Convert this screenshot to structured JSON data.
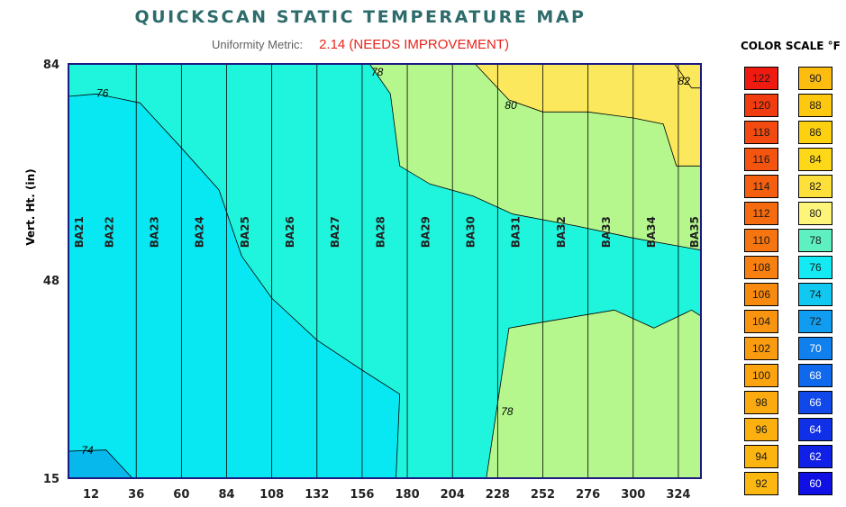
{
  "header": {
    "title": "QUICKSCAN STATIC TEMPERATURE MAP",
    "metric_label": "Uniformity Metric:",
    "metric_value": "2.14 (NEEDS IMPROVEMENT)"
  },
  "colors": {
    "title": "#2e6b6b",
    "metric_value": "#e8231c",
    "plot_border": "#1a1a80",
    "band_74": "#07b8ec",
    "band_76": "#08e8f2",
    "band_78": "#1ff4dc",
    "band_80": "#b5f78c",
    "band_82": "#fbe85c"
  },
  "chart_data": {
    "type": "heatmap",
    "title": "QUICKSCAN STATIC TEMPERATURE MAP",
    "ylabel": "Vert. Ht. (in)",
    "xlabel": "",
    "xlim": [
      0,
      336
    ],
    "ylim": [
      15,
      84
    ],
    "x_ticks": [
      12,
      36,
      60,
      84,
      108,
      132,
      156,
      180,
      204,
      228,
      252,
      276,
      300,
      324
    ],
    "y_ticks": [
      15,
      48,
      84
    ],
    "rack_labels": [
      "BA21",
      "BA22",
      "BA23",
      "BA24",
      "BA25",
      "BA26",
      "BA27",
      "BA28",
      "BA29",
      "BA30",
      "BA31",
      "BA32",
      "BA33",
      "BA34",
      "BA35"
    ],
    "rack_label_x": [
      6,
      22,
      46,
      70,
      94,
      118,
      142,
      166,
      190,
      214,
      238,
      262,
      286,
      310,
      333
    ],
    "rack_line_x": [
      36,
      60,
      84,
      108,
      132,
      156,
      180,
      204,
      228,
      252,
      276,
      300,
      324
    ],
    "contours": [
      {
        "level": 74,
        "label": "74",
        "label_at": [
          10,
          19.5
        ],
        "points": [
          [
            0,
            19.5
          ],
          [
            20,
            19.7
          ],
          [
            34,
            15
          ]
        ]
      },
      {
        "level": 76,
        "label": "76",
        "label_at": [
          18,
          79
        ],
        "points": [
          [
            0,
            78.6
          ],
          [
            15,
            79
          ],
          [
            38,
            77.5
          ],
          [
            60,
            70
          ],
          [
            80,
            63
          ],
          [
            92,
            52
          ],
          [
            108,
            45
          ],
          [
            132,
            38
          ],
          [
            156,
            33
          ],
          [
            176,
            29
          ],
          [
            174,
            15
          ]
        ]
      },
      {
        "level": 78,
        "label": "78",
        "label_at": [
          164,
          82.5
        ],
        "points": [
          [
            160,
            84
          ],
          [
            171,
            79
          ],
          [
            176,
            67
          ],
          [
            192,
            64
          ],
          [
            215,
            62
          ],
          [
            236,
            59
          ],
          [
            270,
            57
          ],
          [
            300,
            55
          ],
          [
            336,
            53
          ]
        ]
      },
      {
        "level": 78,
        "label": "78",
        "label_at": [
          233,
          26
        ],
        "points": [
          [
            222,
            15
          ],
          [
            234,
            40
          ],
          [
            252,
            41
          ],
          [
            290,
            43
          ],
          [
            311,
            40
          ],
          [
            331,
            43
          ],
          [
            336,
            42
          ]
        ]
      },
      {
        "level": 80,
        "label": "80",
        "label_at": [
          235,
          77
        ],
        "points": [
          [
            216,
            84
          ],
          [
            234,
            78
          ],
          [
            252,
            76
          ],
          [
            276,
            76
          ],
          [
            300,
            75
          ],
          [
            316,
            74
          ],
          [
            323,
            67
          ],
          [
            336,
            67
          ]
        ]
      },
      {
        "level": 82,
        "label": "82",
        "label_at": [
          327,
          81
        ],
        "points": [
          [
            322,
            84
          ],
          [
            331,
            80
          ],
          [
            336,
            80
          ]
        ]
      }
    ],
    "color_scale": {
      "title": "COLOR SCALE °F",
      "left": [
        {
          "value": "122",
          "color": "#ef1a10"
        },
        {
          "value": "120",
          "color": "#f13c10"
        },
        {
          "value": "118",
          "color": "#f24a10"
        },
        {
          "value": "116",
          "color": "#f35510"
        },
        {
          "value": "114",
          "color": "#f46010"
        },
        {
          "value": "112",
          "color": "#f56b10"
        },
        {
          "value": "110",
          "color": "#f67510"
        },
        {
          "value": "108",
          "color": "#f78010"
        },
        {
          "value": "106",
          "color": "#f88a10"
        },
        {
          "value": "104",
          "color": "#f99410"
        },
        {
          "value": "102",
          "color": "#fa9c10"
        },
        {
          "value": "100",
          "color": "#fba410"
        },
        {
          "value": "98",
          "color": "#fbab10"
        },
        {
          "value": "96",
          "color": "#fcb010"
        }
      ],
      "right": [
        {
          "value": "90",
          "color": "#fcbc10"
        },
        {
          "value": "88",
          "color": "#fcc810"
        },
        {
          "value": "86",
          "color": "#fdd010"
        },
        {
          "value": "84",
          "color": "#fdd818"
        },
        {
          "value": "82",
          "color": "#fde03a"
        },
        {
          "value": "80",
          "color": "#fdf57a"
        },
        {
          "value": "78",
          "color": "#5ef0c0"
        },
        {
          "value": "76",
          "color": "#14eaf4"
        },
        {
          "value": "74",
          "color": "#10c8f2"
        },
        {
          "value": "72",
          "color": "#109cf0"
        },
        {
          "value": "70",
          "color": "#1080ee"
        },
        {
          "value": "68",
          "color": "#1068ec"
        },
        {
          "value": "66",
          "color": "#1048ea"
        },
        {
          "value": "64",
          "color": "#1030e8"
        },
        {
          "value": "62",
          "color": "#1020e6"
        },
        {
          "value": "60",
          "color": "#1010e4"
        }
      ],
      "left_extra": [
        {
          "value": "94",
          "color": "#fcb410"
        },
        {
          "value": "92",
          "color": "#fcb810"
        }
      ]
    }
  }
}
